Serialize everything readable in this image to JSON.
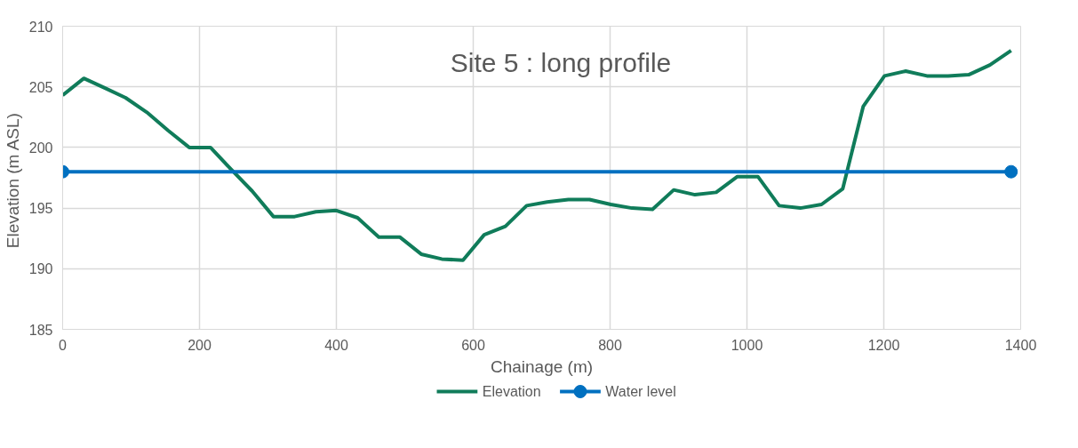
{
  "chart_data": {
    "type": "line",
    "title": "Site 5 : long profile",
    "xlabel": "Chainage (m)",
    "ylabel": "Elevation (m  ASL)",
    "xlim": [
      0,
      1400
    ],
    "xticks": [
      0,
      200,
      400,
      600,
      800,
      1000,
      1200,
      1400
    ],
    "ylim": [
      185,
      210
    ],
    "yticks": [
      185,
      190,
      195,
      200,
      205,
      210
    ],
    "grid": true,
    "legend": "bottom",
    "series": [
      {
        "name": "Elevation",
        "color": "#107c5a",
        "marker": "none",
        "x": [
          0,
          31,
          62,
          92,
          123,
          154,
          185,
          216,
          246,
          277,
          308,
          339,
          370,
          400,
          431,
          462,
          493,
          524,
          554,
          585,
          616,
          647,
          678,
          708,
          739,
          770,
          801,
          832,
          862,
          893,
          924,
          955,
          986,
          1016,
          1047,
          1078,
          1109,
          1140,
          1170,
          1201,
          1232,
          1263,
          1294,
          1324,
          1355,
          1386
        ],
        "values": [
          204.3,
          205.7,
          204.9,
          204.1,
          202.9,
          201.4,
          200.0,
          200.0,
          198.2,
          196.4,
          194.3,
          194.3,
          194.7,
          194.8,
          194.2,
          192.6,
          192.6,
          191.2,
          190.8,
          190.7,
          192.8,
          193.5,
          195.2,
          195.5,
          195.7,
          195.7,
          195.3,
          195.0,
          194.9,
          196.5,
          196.1,
          196.3,
          197.6,
          197.6,
          195.2,
          195.0,
          195.3,
          196.6,
          203.4,
          205.9,
          206.3,
          205.9,
          205.9,
          206.0,
          206.8,
          208.0
        ]
      },
      {
        "name": "Water level",
        "color": "#0070c0",
        "marker": "circle",
        "x": [
          0,
          1386
        ],
        "values": [
          198,
          198
        ]
      }
    ]
  }
}
